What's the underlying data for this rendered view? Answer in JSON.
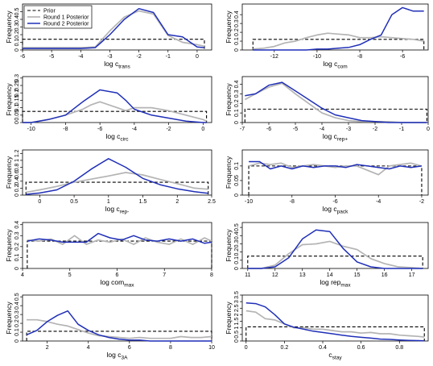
{
  "legend": {
    "entries": [
      {
        "name": "Prior",
        "key": "prior"
      },
      {
        "name": "Round 1 Posterior",
        "key": "round1"
      },
      {
        "name": "Round 2 Posterior",
        "key": "round2"
      }
    ],
    "placement": "top-left of first panel"
  },
  "colors": {
    "prior": "#000000",
    "round1": "#b4b4b4",
    "round2": "#1f2fb8"
  },
  "chart_data": [
    {
      "type": "line",
      "ylabel": "Frequency",
      "xlabel": "log c",
      "xsub": "trans",
      "xlim": [
        -6,
        0.5
      ],
      "ylim": [
        0,
        0.6
      ],
      "xticks": [
        -6,
        -5,
        -4,
        -3,
        -2,
        -1,
        0
      ],
      "yticks": [
        0,
        0.1,
        0.2,
        0.3,
        0.4,
        0.5
      ],
      "prior": {
        "x0": -6,
        "x1": 0.25,
        "level": 0.14
      },
      "series": [
        {
          "key": "round1",
          "x": [
            -6,
            -5.5,
            -5,
            -4.5,
            -4,
            -3.5,
            -3,
            -2.5,
            -2,
            -1.5,
            -1,
            -0.5,
            0,
            0.25
          ],
          "y": [
            0.03,
            0.03,
            0.03,
            0.03,
            0.03,
            0.04,
            0.25,
            0.43,
            0.51,
            0.47,
            0.19,
            0.1,
            0.07,
            0.05
          ]
        },
        {
          "key": "round2",
          "x": [
            -6,
            -5.5,
            -5,
            -4.5,
            -4,
            -3.5,
            -3,
            -2.5,
            -2,
            -1.5,
            -1,
            -0.5,
            0,
            0.25
          ],
          "y": [
            0.02,
            0.02,
            0.02,
            0.02,
            0.02,
            0.03,
            0.2,
            0.4,
            0.54,
            0.49,
            0.2,
            0.17,
            0.04,
            0.03
          ]
        }
      ]
    },
    {
      "type": "line",
      "ylabel": "Frequency",
      "xlabel": "log c",
      "xsub": "com",
      "xlim": [
        -13.5,
        -4.8
      ],
      "ylim": [
        0,
        0.52
      ],
      "xticks": [
        -12,
        -10,
        -8,
        -6
      ],
      "yticks": [
        0,
        0.1,
        0.2,
        0.3,
        0.4
      ],
      "prior": {
        "x0": -13,
        "x1": -5,
        "level": 0.12
      },
      "series": [
        {
          "key": "round1",
          "x": [
            -13,
            -12.5,
            -12,
            -11.5,
            -11,
            -10.5,
            -10,
            -9.5,
            -9,
            -8.5,
            -8,
            -7.5,
            -7,
            -6.5,
            -6,
            -5.5,
            -5
          ],
          "y": [
            0.01,
            0.02,
            0.04,
            0.08,
            0.1,
            0.14,
            0.17,
            0.19,
            0.18,
            0.17,
            0.14,
            0.14,
            0.15,
            0.14,
            0.13,
            0.12,
            0.1
          ]
        },
        {
          "key": "round2",
          "x": [
            -13,
            -12.5,
            -12,
            -11.5,
            -11,
            -10.5,
            -10,
            -9.5,
            -9,
            -8.5,
            -8,
            -7.5,
            -7,
            -6.5,
            -6,
            -5.5,
            -5
          ],
          "y": [
            0,
            0,
            0,
            0,
            0,
            0,
            0.01,
            0.01,
            0.02,
            0.03,
            0.06,
            0.12,
            0.17,
            0.4,
            0.48,
            0.44,
            0.44
          ]
        }
      ]
    },
    {
      "type": "line",
      "ylabel": "Frequency",
      "xlabel": "log c",
      "xsub": "circ",
      "xlim": [
        -10.5,
        0.5
      ],
      "ylim": [
        0,
        0.31
      ],
      "xticks": [
        -10,
        -8,
        -6,
        -4,
        -2,
        0
      ],
      "yticks": [
        0,
        0.05,
        0.1,
        0.15,
        0.2,
        0.25,
        0.3
      ],
      "prior": {
        "x0": -10.5,
        "x1": 0.2,
        "level": 0.075
      },
      "series": [
        {
          "key": "round1",
          "x": [
            -10.5,
            -10,
            -9,
            -8,
            -7,
            -6.5,
            -6,
            -5,
            -4.5,
            -4,
            -3,
            -2,
            -1,
            0,
            0.2
          ],
          "y": [
            0,
            0,
            0.02,
            0.05,
            0.09,
            0.12,
            0.14,
            0.1,
            0.08,
            0.1,
            0.1,
            0.08,
            0.05,
            0.02,
            0.01
          ]
        },
        {
          "key": "round2",
          "x": [
            -10.5,
            -10,
            -9,
            -8,
            -7,
            -6.5,
            -6,
            -5,
            -4.5,
            -4,
            -3,
            -2,
            -1,
            0,
            0.2
          ],
          "y": [
            0,
            0,
            0.02,
            0.05,
            0.14,
            0.18,
            0.22,
            0.2,
            0.15,
            0.09,
            0.05,
            0.03,
            0.01,
            0,
            0
          ]
        }
      ]
    },
    {
      "type": "line",
      "ylabel": "Frequency",
      "xlabel": "log c",
      "xsub": "rep+",
      "xlim": [
        -7,
        0
      ],
      "ylim": [
        0,
        0.48
      ],
      "xticks": [
        -7,
        -6,
        -5,
        -4,
        -3,
        -2,
        -1,
        0
      ],
      "yticks": [
        0,
        0.1,
        0.2,
        0.3,
        0.4
      ],
      "prior": {
        "x0": -6.9,
        "x1": -0.05,
        "level": 0.14
      },
      "series": [
        {
          "key": "round1",
          "x": [
            -6.9,
            -6.5,
            -6,
            -5.5,
            -5,
            -4.5,
            -4,
            -3.5,
            -3,
            -2.5,
            -2,
            -1.5,
            -1,
            -0.5,
            -0.05
          ],
          "y": [
            0.24,
            0.3,
            0.37,
            0.41,
            0.3,
            0.2,
            0.1,
            0.05,
            0.02,
            0.01,
            0.01,
            0.01,
            0,
            0,
            0
          ]
        },
        {
          "key": "round2",
          "x": [
            -6.9,
            -6.5,
            -6,
            -5.5,
            -5,
            -4.5,
            -4,
            -3.5,
            -3,
            -2.5,
            -2,
            -1.5,
            -1,
            -0.5,
            -0.05
          ],
          "y": [
            0.28,
            0.3,
            0.39,
            0.42,
            0.33,
            0.24,
            0.15,
            0.08,
            0.05,
            0.02,
            0.01,
            0,
            0,
            0,
            0
          ]
        }
      ]
    },
    {
      "type": "line",
      "ylabel": "Frequency",
      "xlabel": "log c",
      "xsub": "rep-",
      "xlim": [
        -0.25,
        2.5
      ],
      "ylim": [
        0,
        1.3
      ],
      "xticks": [
        0,
        0.5,
        1,
        1.5,
        2,
        2.5
      ],
      "yticks": [
        0,
        0.2,
        0.4,
        0.6,
        0.8,
        1,
        1.2
      ],
      "prior": {
        "x0": -0.2,
        "x1": 2.45,
        "level": 0.37
      },
      "series": [
        {
          "key": "round1",
          "x": [
            -0.2,
            0,
            0.25,
            0.5,
            0.75,
            1,
            1.25,
            1.5,
            1.75,
            2,
            2.25,
            2.45
          ],
          "y": [
            0.08,
            0.15,
            0.25,
            0.37,
            0.46,
            0.55,
            0.65,
            0.58,
            0.45,
            0.33,
            0.2,
            0.17
          ]
        },
        {
          "key": "round2",
          "x": [
            -0.2,
            0,
            0.25,
            0.5,
            0.75,
            1,
            1.25,
            1.5,
            1.75,
            2,
            2.25,
            2.45
          ],
          "y": [
            0.02,
            0.06,
            0.15,
            0.4,
            0.75,
            1.05,
            0.8,
            0.48,
            0.3,
            0.18,
            0.1,
            0.05
          ]
        }
      ]
    },
    {
      "type": "line",
      "ylabel": "Frequency",
      "xlabel": "log c",
      "xsub": "pack",
      "xlim": [
        -10.3,
        -1.7
      ],
      "ylim": [
        0,
        0.155
      ],
      "xticks": [
        -10,
        -8,
        -6,
        -4,
        -2
      ],
      "yticks": [
        0,
        0.05,
        0.1
      ],
      "prior": {
        "x0": -10,
        "x1": -2,
        "level": 0.1
      },
      "series": [
        {
          "key": "round1",
          "x": [
            -10,
            -9.5,
            -9,
            -8.5,
            -8,
            -7.5,
            -7,
            -6.5,
            -6,
            -5.5,
            -5,
            -4.5,
            -4,
            -3.5,
            -3,
            -2.5,
            -2
          ],
          "y": [
            0.1,
            0.11,
            0.105,
            0.11,
            0.095,
            0.1,
            0.105,
            0.1,
            0.095,
            0.1,
            0.1,
            0.085,
            0.07,
            0.1,
            0.105,
            0.11,
            0.1
          ]
        },
        {
          "key": "round2",
          "x": [
            -10,
            -9.5,
            -9,
            -8.5,
            -8,
            -7.5,
            -7,
            -6.5,
            -6,
            -5.5,
            -5,
            -4.5,
            -4,
            -3.5,
            -3,
            -2.5,
            -2
          ],
          "y": [
            0.115,
            0.115,
            0.09,
            0.1,
            0.09,
            0.1,
            0.095,
            0.1,
            0.1,
            0.095,
            0.105,
            0.1,
            0.095,
            0.09,
            0.1,
            0.095,
            0.1
          ]
        }
      ]
    },
    {
      "type": "line",
      "ylabel": "Frequency",
      "xlabel": "log com",
      "xsub": "max",
      "xlim": [
        4,
        8
      ],
      "ylim": [
        0,
        0.42
      ],
      "xticks": [
        4,
        5,
        6,
        7,
        8
      ],
      "yticks": [
        0,
        0.1,
        0.2,
        0.3,
        0.4
      ],
      "prior": {
        "x0": 4.1,
        "x1": 8,
        "level": 0.25
      },
      "series": [
        {
          "key": "round1",
          "x": [
            4.1,
            4.35,
            4.6,
            4.85,
            5.1,
            5.35,
            5.6,
            5.85,
            6.1,
            6.35,
            6.6,
            6.85,
            7.1,
            7.35,
            7.6,
            7.85,
            8
          ],
          "y": [
            0.26,
            0.25,
            0.27,
            0.22,
            0.3,
            0.22,
            0.26,
            0.24,
            0.27,
            0.22,
            0.28,
            0.24,
            0.22,
            0.27,
            0.22,
            0.28,
            0.25
          ]
        },
        {
          "key": "round2",
          "x": [
            4.1,
            4.35,
            4.6,
            4.85,
            5.1,
            5.35,
            5.6,
            5.85,
            6.1,
            6.35,
            6.6,
            6.85,
            7.1,
            7.35,
            7.6,
            7.85,
            8
          ],
          "y": [
            0.25,
            0.27,
            0.26,
            0.24,
            0.24,
            0.24,
            0.32,
            0.28,
            0.26,
            0.3,
            0.26,
            0.25,
            0.27,
            0.25,
            0.27,
            0.23,
            0.24
          ]
        }
      ]
    },
    {
      "type": "line",
      "ylabel": "Frequency",
      "xlabel": "log rep",
      "xsub": "max",
      "xlim": [
        10.8,
        17.6
      ],
      "ylim": [
        0,
        0.56
      ],
      "xticks": [
        11,
        12,
        13,
        14,
        15,
        16,
        17
      ],
      "yticks": [
        0,
        0.1,
        0.2,
        0.3,
        0.4,
        0.5
      ],
      "prior": {
        "x0": 11,
        "x1": 17.4,
        "level": 0.15
      },
      "series": [
        {
          "key": "round1",
          "x": [
            11,
            11.5,
            12,
            12.5,
            13,
            13.5,
            14,
            14.5,
            15,
            15.5,
            16,
            16.5,
            17,
            17.4
          ],
          "y": [
            0,
            0,
            0.04,
            0.18,
            0.29,
            0.3,
            0.33,
            0.27,
            0.23,
            0.12,
            0.06,
            0.02,
            0.01,
            0
          ]
        },
        {
          "key": "round2",
          "x": [
            11,
            11.5,
            12,
            12.5,
            13,
            13.5,
            14,
            14.5,
            15,
            15.5,
            16,
            16.5,
            17,
            17.4
          ],
          "y": [
            0,
            0,
            0.02,
            0.13,
            0.36,
            0.47,
            0.45,
            0.24,
            0.08,
            0.02,
            0,
            0,
            0,
            0
          ]
        }
      ]
    },
    {
      "type": "line",
      "ylabel": "Frequency",
      "xlabel": "log c",
      "xsub": "3A",
      "xlim": [
        0.8,
        10
      ],
      "ylim": [
        0,
        0.52
      ],
      "xticks": [
        2,
        4,
        6,
        8,
        10
      ],
      "yticks": [
        0,
        0.1,
        0.2,
        0.3,
        0.4,
        0.5
      ],
      "prior": {
        "x0": 1,
        "x1": 10,
        "level": 0.11
      },
      "series": [
        {
          "key": "round1",
          "x": [
            1,
            1.5,
            2,
            2.5,
            3,
            3.5,
            4,
            4.5,
            5,
            5.5,
            6,
            6.5,
            7,
            7.5,
            8,
            8.5,
            9,
            9.5,
            10
          ],
          "y": [
            0.24,
            0.24,
            0.22,
            0.19,
            0.17,
            0.13,
            0.09,
            0.06,
            0.05,
            0.04,
            0.03,
            0.04,
            0.03,
            0.03,
            0.03,
            0.05,
            0.04,
            0.04,
            0.05
          ]
        },
        {
          "key": "round2",
          "x": [
            1,
            1.5,
            2,
            2.5,
            3,
            3.5,
            4,
            4.5,
            5,
            5.5,
            6,
            6.5,
            7,
            7.5,
            8,
            8.5,
            9,
            9.5,
            10
          ],
          "y": [
            0.07,
            0.12,
            0.22,
            0.29,
            0.34,
            0.19,
            0.12,
            0.07,
            0.04,
            0.02,
            0.01,
            0.01,
            0,
            0,
            0,
            0,
            0,
            0,
            0
          ]
        }
      ]
    },
    {
      "type": "line",
      "ylabel": "Frequency",
      "xlabel": "c",
      "xsub": "stay",
      "xlim": [
        -0.02,
        0.95
      ],
      "ylim": [
        0,
        3.5
      ],
      "xticks": [
        0,
        0.2,
        0.4,
        0.6,
        0.8
      ],
      "yticks": [
        0,
        0.5,
        1,
        1.5,
        2,
        2.5,
        3,
        3.5
      ],
      "prior": {
        "x0": 0,
        "x1": 0.93,
        "level": 1.08
      },
      "series": [
        {
          "key": "round1",
          "x": [
            0,
            0.05,
            0.1,
            0.15,
            0.2,
            0.25,
            0.3,
            0.35,
            0.4,
            0.45,
            0.5,
            0.55,
            0.6,
            0.65,
            0.7,
            0.75,
            0.8,
            0.85,
            0.9,
            0.93
          ],
          "y": [
            2.3,
            2.2,
            1.7,
            1.6,
            1.3,
            1.0,
            1.0,
            0.9,
            0.9,
            0.8,
            0.7,
            0.7,
            0.6,
            0.65,
            0.55,
            0.55,
            0.45,
            0.4,
            0.35,
            0.3
          ]
        },
        {
          "key": "round2",
          "x": [
            0,
            0.05,
            0.1,
            0.15,
            0.2,
            0.25,
            0.3,
            0.35,
            0.4,
            0.45,
            0.5,
            0.55,
            0.6,
            0.65,
            0.7,
            0.75,
            0.8,
            0.85,
            0.9,
            0.93
          ],
          "y": [
            2.9,
            2.85,
            2.6,
            2.0,
            1.3,
            1.05,
            0.9,
            0.75,
            0.65,
            0.55,
            0.45,
            0.35,
            0.28,
            0.22,
            0.15,
            0.12,
            0.08,
            0.05,
            0.03,
            0.02
          ]
        }
      ]
    }
  ]
}
